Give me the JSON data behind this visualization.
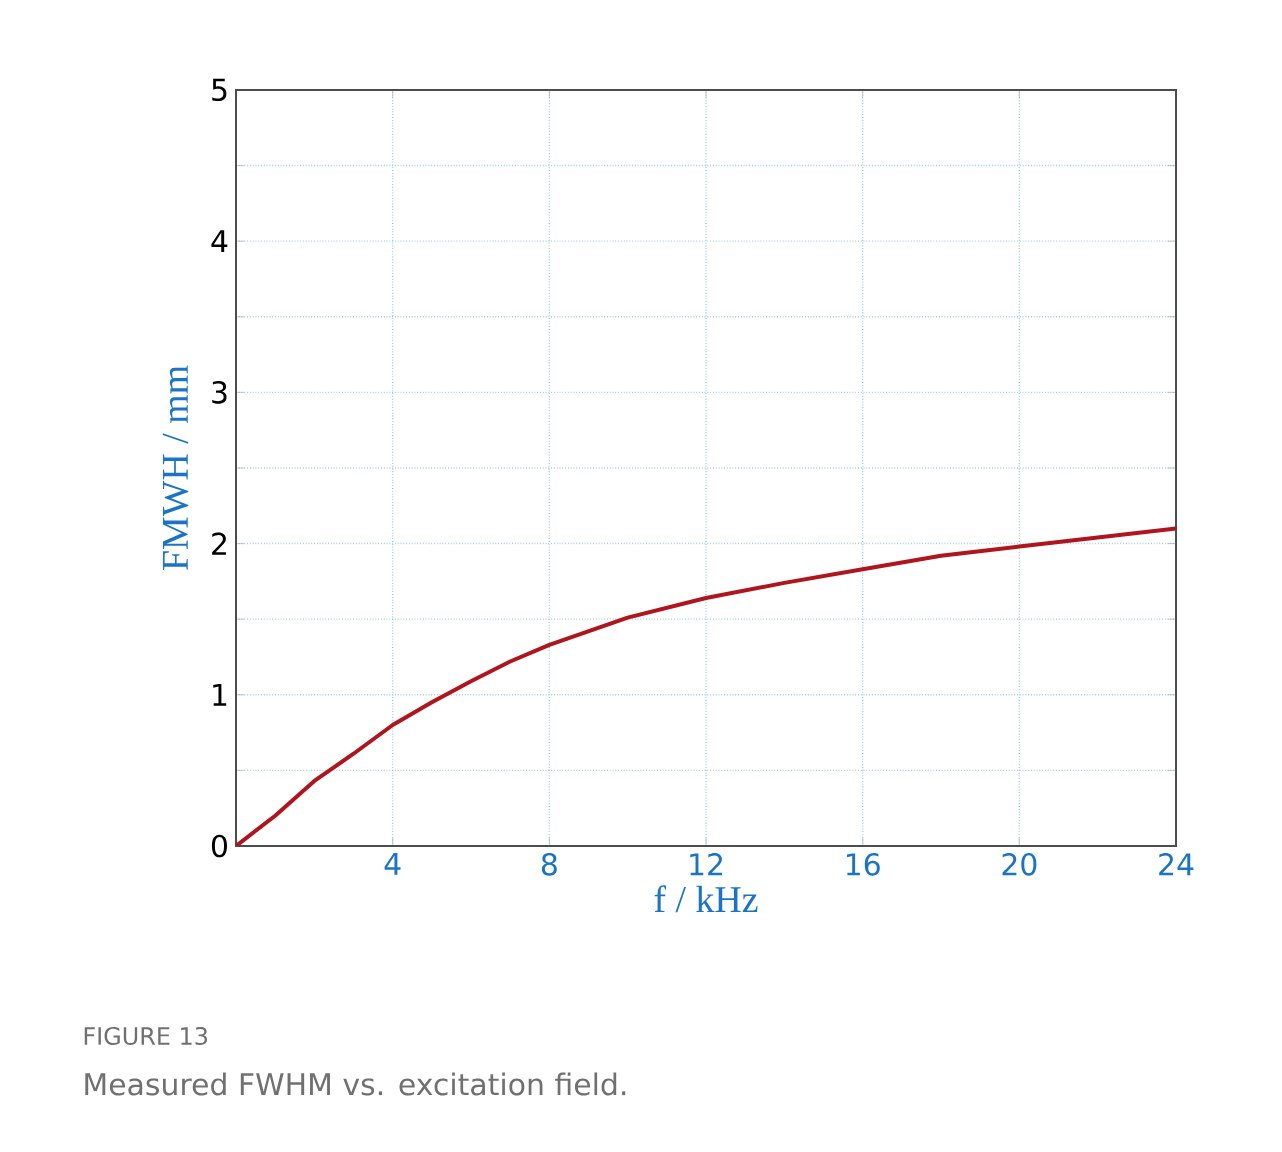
{
  "chart_data": {
    "type": "line",
    "xlabel": "f / kHz",
    "ylabel": "FMWH / mm",
    "annotations": [
      "FIGURE 13",
      "Measured FWHM vs. excitation field."
    ],
    "x": [
      0,
      1,
      2,
      3,
      4,
      5,
      6,
      7,
      8,
      10,
      12,
      14,
      16,
      18,
      20,
      22,
      24
    ],
    "series": [
      {
        "color": "#b0141c",
        "values": [
          0,
          0.2,
          0.43,
          0.61,
          0.8,
          0.95,
          1.09,
          1.22,
          1.33,
          1.51,
          1.64,
          1.74,
          1.83,
          1.92,
          1.98,
          2.04,
          2.1
        ]
      }
    ],
    "xlim": [
      0,
      24
    ],
    "ylim": [
      0,
      5
    ],
    "xticks": [
      4,
      8,
      12,
      16,
      20,
      24
    ],
    "yticks": [
      0,
      {
        "value": 0.5,
        "label": null
      },
      1,
      {
        "value": 1.5,
        "label": null
      },
      2,
      {
        "value": 2.5,
        "label": null
      },
      3,
      {
        "value": 3.5,
        "label": null
      },
      4,
      {
        "value": 4.5,
        "label": null
      },
      5
    ],
    "grid": true,
    "marker": "none",
    "line_style": "solid"
  }
}
